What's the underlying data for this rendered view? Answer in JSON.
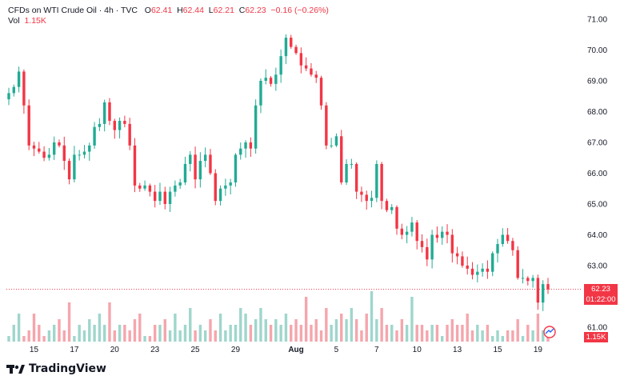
{
  "legend": {
    "symbol": "CFDs on WTI Crude Oil · 4h · TVC",
    "open_label": "O",
    "open": "62.41",
    "high_label": "H",
    "high": "62.44",
    "low_label": "L",
    "low": "62.21",
    "close_label": "C",
    "close": "62.23",
    "change": "−0.16 (−0.26%)",
    "vol_label": "Vol",
    "vol_value": "1.15K"
  },
  "badges": {
    "last_price": "62.23",
    "countdown": "01:22:00",
    "volume": "1.15K"
  },
  "branding": {
    "logo_text": "TradingView"
  },
  "colors": {
    "up": "#22ab94",
    "down": "#f23645",
    "up_vol": "#9fd6cc",
    "down_vol": "#f5a6ad"
  },
  "chart_data": {
    "type": "candlestick",
    "price_ticks": [
      61,
      62,
      63,
      64,
      65,
      66,
      67,
      68,
      69,
      70,
      71
    ],
    "price_tick_labels": [
      "61.00",
      "62.00",
      "63.00",
      "64.00",
      "65.00",
      "66.00",
      "67.00",
      "68.00",
      "69.00",
      "70.00",
      "71.00"
    ],
    "last_price": 62.23,
    "x_ticks": [
      {
        "label": "15",
        "bar": 5
      },
      {
        "label": "17",
        "bar": 13
      },
      {
        "label": "20",
        "bar": 21
      },
      {
        "label": "23",
        "bar": 29
      },
      {
        "label": "25",
        "bar": 37
      },
      {
        "label": "29",
        "bar": 45
      },
      {
        "label": "Aug",
        "bar": 57
      },
      {
        "label": "5",
        "bar": 65
      },
      {
        "label": "7",
        "bar": 73
      },
      {
        "label": "10",
        "bar": 81
      },
      {
        "label": "13",
        "bar": 89
      },
      {
        "label": "15",
        "bar": 97
      },
      {
        "label": "19",
        "bar": 105
      }
    ],
    "closes": [
      68.6,
      68.8,
      69.3,
      68.2,
      66.9,
      66.8,
      66.7,
      66.5,
      66.6,
      67.0,
      66.9,
      66.4,
      65.8,
      66.6,
      66.6,
      66.7,
      66.9,
      67.5,
      67.6,
      68.3,
      67.7,
      67.4,
      67.7,
      67.6,
      66.9,
      65.6,
      65.5,
      65.6,
      65.4,
      65.1,
      65.4,
      65.0,
      65.4,
      65.6,
      65.7,
      66.3,
      66.6,
      65.8,
      66.4,
      66.6,
      66.0,
      65.1,
      65.5,
      65.6,
      65.7,
      66.6,
      66.8,
      67.0,
      66.8,
      68.2,
      69.0,
      69.1,
      68.9,
      69.2,
      69.8,
      70.4,
      70.1,
      69.9,
      69.5,
      69.4,
      69.2,
      69.1,
      68.2,
      66.9,
      66.9,
      67.2,
      65.7,
      66.3,
      66.3,
      65.4,
      65.3,
      65.1,
      65.2,
      66.3,
      65.1,
      64.8,
      64.9,
      64.2,
      64.0,
      64.1,
      64.4,
      63.8,
      63.6,
      63.2,
      64.0,
      63.9,
      64.1,
      64.0,
      63.4,
      63.3,
      63.0,
      62.9,
      62.7,
      62.8,
      62.9,
      62.8,
      63.4,
      63.7,
      64.0,
      63.8,
      63.5,
      62.6,
      62.6,
      62.5,
      62.6,
      61.8,
      62.4,
      62.23
    ],
    "volume_ratio": [
      0.1,
      0.3,
      0.5,
      0.1,
      0.2,
      0.5,
      0.3,
      0.1,
      0.2,
      0.3,
      0.4,
      0.2,
      0.7,
      0.1,
      0.3,
      0.2,
      0.4,
      0.3,
      0.5,
      0.3,
      0.7,
      0.2,
      0.3,
      0.3,
      0.2,
      0.4,
      0.5,
      0.1,
      0.1,
      0.3,
      0.3,
      0.4,
      0.2,
      0.5,
      0.2,
      0.3,
      0.6,
      0.2,
      0.3,
      0.2,
      0.4,
      0.2,
      0.5,
      0.2,
      0.3,
      0.3,
      0.6,
      0.5,
      0.3,
      0.4,
      0.6,
      0.4,
      0.3,
      0.4,
      0.3,
      0.5,
      0.3,
      0.4,
      0.3,
      0.8,
      0.3,
      0.4,
      0.2,
      0.6,
      0.3,
      0.4,
      0.5,
      0.4,
      0.6,
      0.4,
      0.2,
      0.5,
      0.9,
      0.4,
      0.6,
      0.3,
      0.3,
      0.2,
      0.4,
      0.3,
      0.8,
      0.3,
      0.3,
      0.2,
      0.3,
      0.3,
      0.1,
      0.3,
      0.4,
      0.3,
      0.3,
      0.5,
      0.2,
      0.3,
      0.2,
      0.3,
      0.1,
      0.2,
      0.1,
      0.2,
      0.2,
      0.4,
      0.1,
      0.3,
      0.2,
      0.5,
      0.2,
      0.1
    ]
  }
}
